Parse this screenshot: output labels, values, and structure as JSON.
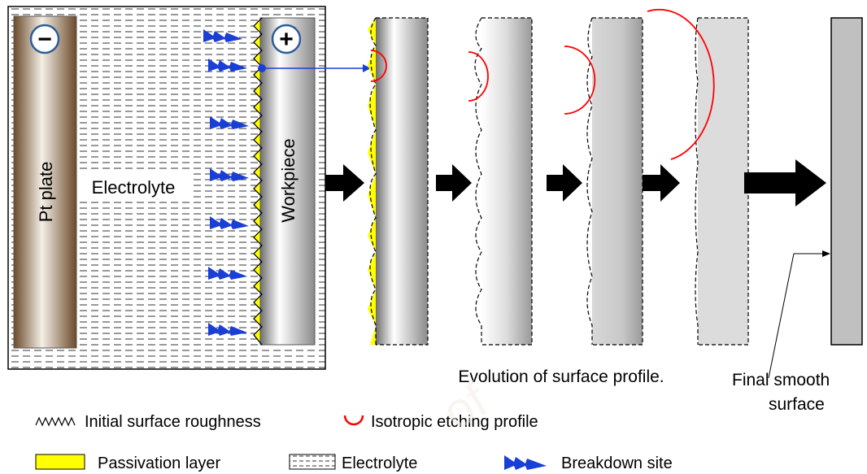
{
  "cell": {
    "pt_plate_label": "Pt plate",
    "electrolyte_label": "Electrolyte",
    "workpiece_label": "Workpiece",
    "cathode_sign": "−",
    "anode_sign": "+"
  },
  "captions": {
    "evolution": "Evolution of surface profile.",
    "final_line1": "Final smooth",
    "final_line2": "surface"
  },
  "legend": {
    "roughness": "Initial surface roughness",
    "etching": "Isotropic etching profile",
    "passivation": "Passivation layer",
    "electrolyte": "Electrolyte",
    "breakdown": "Breakdown site"
  },
  "colors": {
    "pt_plate": "#a8875a",
    "workpiece": "#9a9a9a",
    "passivation": "#ffff00",
    "etching": "#ff0000",
    "breakdown": "#1a3fd6",
    "arrow": "#000000",
    "final_surface": "#c0c0c0"
  }
}
